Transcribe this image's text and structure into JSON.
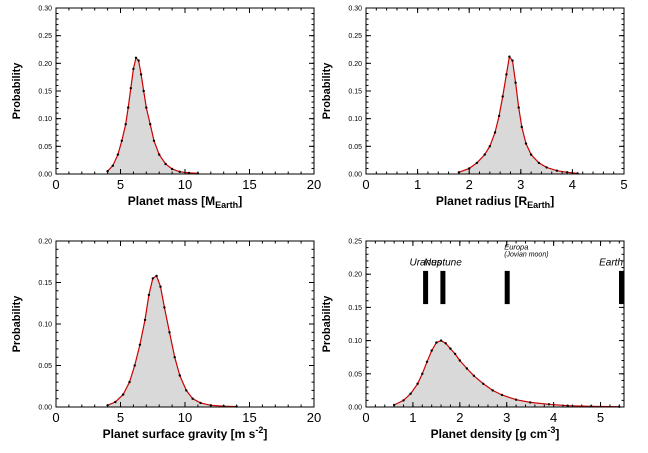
{
  "chart_data": [
    {
      "type": "area",
      "xlabel": {
        "main": "Planet mass [M",
        "sub": "Earth",
        "tail": "]"
      },
      "ylabel": "Probability",
      "xlim": [
        0,
        20
      ],
      "ylim": [
        0,
        0.3
      ],
      "xticks": [
        "0",
        "5",
        "10",
        "15",
        "20"
      ],
      "yticks": [
        "0.00",
        "0.05",
        "0.10",
        "0.15",
        "0.20",
        "0.25",
        "0.30"
      ],
      "x": [
        4.0,
        4.4,
        4.8,
        5.1,
        5.4,
        5.6,
        5.8,
        6.0,
        6.2,
        6.4,
        6.6,
        6.8,
        7.0,
        7.3,
        7.6,
        8.0,
        8.5,
        9.0,
        9.6,
        10.3,
        11.0
      ],
      "y": [
        0.005,
        0.015,
        0.035,
        0.06,
        0.09,
        0.12,
        0.155,
        0.19,
        0.21,
        0.205,
        0.18,
        0.15,
        0.12,
        0.09,
        0.06,
        0.035,
        0.018,
        0.009,
        0.004,
        0.002,
        0.001
      ]
    },
    {
      "type": "area",
      "xlabel": {
        "main": "Planet radius [R",
        "sub": "Earth",
        "tail": "]"
      },
      "ylabel": "Probability",
      "xlim": [
        0,
        5
      ],
      "ylim": [
        0,
        0.3
      ],
      "xticks": [
        "0",
        "1",
        "2",
        "3",
        "4",
        "5"
      ],
      "yticks": [
        "0.00",
        "0.05",
        "0.10",
        "0.15",
        "0.20",
        "0.25",
        "0.30"
      ],
      "x": [
        1.8,
        2.0,
        2.15,
        2.3,
        2.4,
        2.5,
        2.58,
        2.65,
        2.72,
        2.78,
        2.84,
        2.9,
        2.96,
        3.02,
        3.1,
        3.2,
        3.35,
        3.5,
        3.7,
        3.9,
        4.1
      ],
      "y": [
        0.003,
        0.01,
        0.02,
        0.035,
        0.05,
        0.075,
        0.105,
        0.14,
        0.18,
        0.212,
        0.205,
        0.165,
        0.12,
        0.085,
        0.055,
        0.035,
        0.02,
        0.012,
        0.006,
        0.003,
        0.001
      ]
    },
    {
      "type": "area",
      "xlabel": {
        "main": "Planet surface gravity [m s",
        "sup": "-2",
        "tail": "]"
      },
      "ylabel": "Probability",
      "xlim": [
        0,
        20
      ],
      "ylim": [
        0,
        0.2
      ],
      "xticks": [
        "0",
        "5",
        "10",
        "15",
        "20"
      ],
      "yticks": [
        "0.00",
        "0.05",
        "0.10",
        "0.15",
        "0.20"
      ],
      "x": [
        4.0,
        4.6,
        5.2,
        5.7,
        6.1,
        6.5,
        6.9,
        7.2,
        7.5,
        7.8,
        8.1,
        8.4,
        8.8,
        9.2,
        9.6,
        10.1,
        10.6,
        11.2,
        12.0,
        13.0,
        14.0
      ],
      "y": [
        0.002,
        0.006,
        0.015,
        0.03,
        0.05,
        0.075,
        0.105,
        0.135,
        0.155,
        0.158,
        0.145,
        0.12,
        0.09,
        0.06,
        0.038,
        0.02,
        0.01,
        0.005,
        0.002,
        0.001,
        0.0005
      ]
    },
    {
      "type": "area",
      "xlabel": {
        "main": "Planet density [g cm",
        "sup": "-3",
        "tail": "]"
      },
      "ylabel": "Probability",
      "xlim": [
        0,
        5.5
      ],
      "ylim": [
        0,
        0.25
      ],
      "xticks": [
        "0",
        "1",
        "2",
        "3",
        "4",
        "5"
      ],
      "yticks": [
        "0.00",
        "0.05",
        "0.10",
        "0.15",
        "0.20",
        "0.25"
      ],
      "x": [
        0.6,
        0.8,
        0.95,
        1.1,
        1.2,
        1.3,
        1.4,
        1.5,
        1.6,
        1.7,
        1.8,
        1.9,
        2.0,
        2.15,
        2.3,
        2.5,
        2.7,
        2.9,
        3.2,
        3.5,
        3.9,
        4.3,
        4.8,
        5.4
      ],
      "y": [
        0.003,
        0.01,
        0.02,
        0.035,
        0.05,
        0.068,
        0.085,
        0.097,
        0.1,
        0.096,
        0.088,
        0.08,
        0.07,
        0.058,
        0.047,
        0.035,
        0.025,
        0.018,
        0.011,
        0.007,
        0.004,
        0.002,
        0.001,
        0.0005
      ],
      "references": [
        {
          "label": "Uranus",
          "x": 1.27
        },
        {
          "label": "Neptune",
          "x": 1.64
        },
        {
          "label": "Europa",
          "sub_label": "(Jovian moon)",
          "x": 3.01
        },
        {
          "label": "Earth",
          "x": 5.51
        }
      ]
    }
  ],
  "colors": {
    "fill": "#d9d9d9",
    "curve": "#cc0000",
    "points": "#000000",
    "reference_bar": "#000000"
  }
}
